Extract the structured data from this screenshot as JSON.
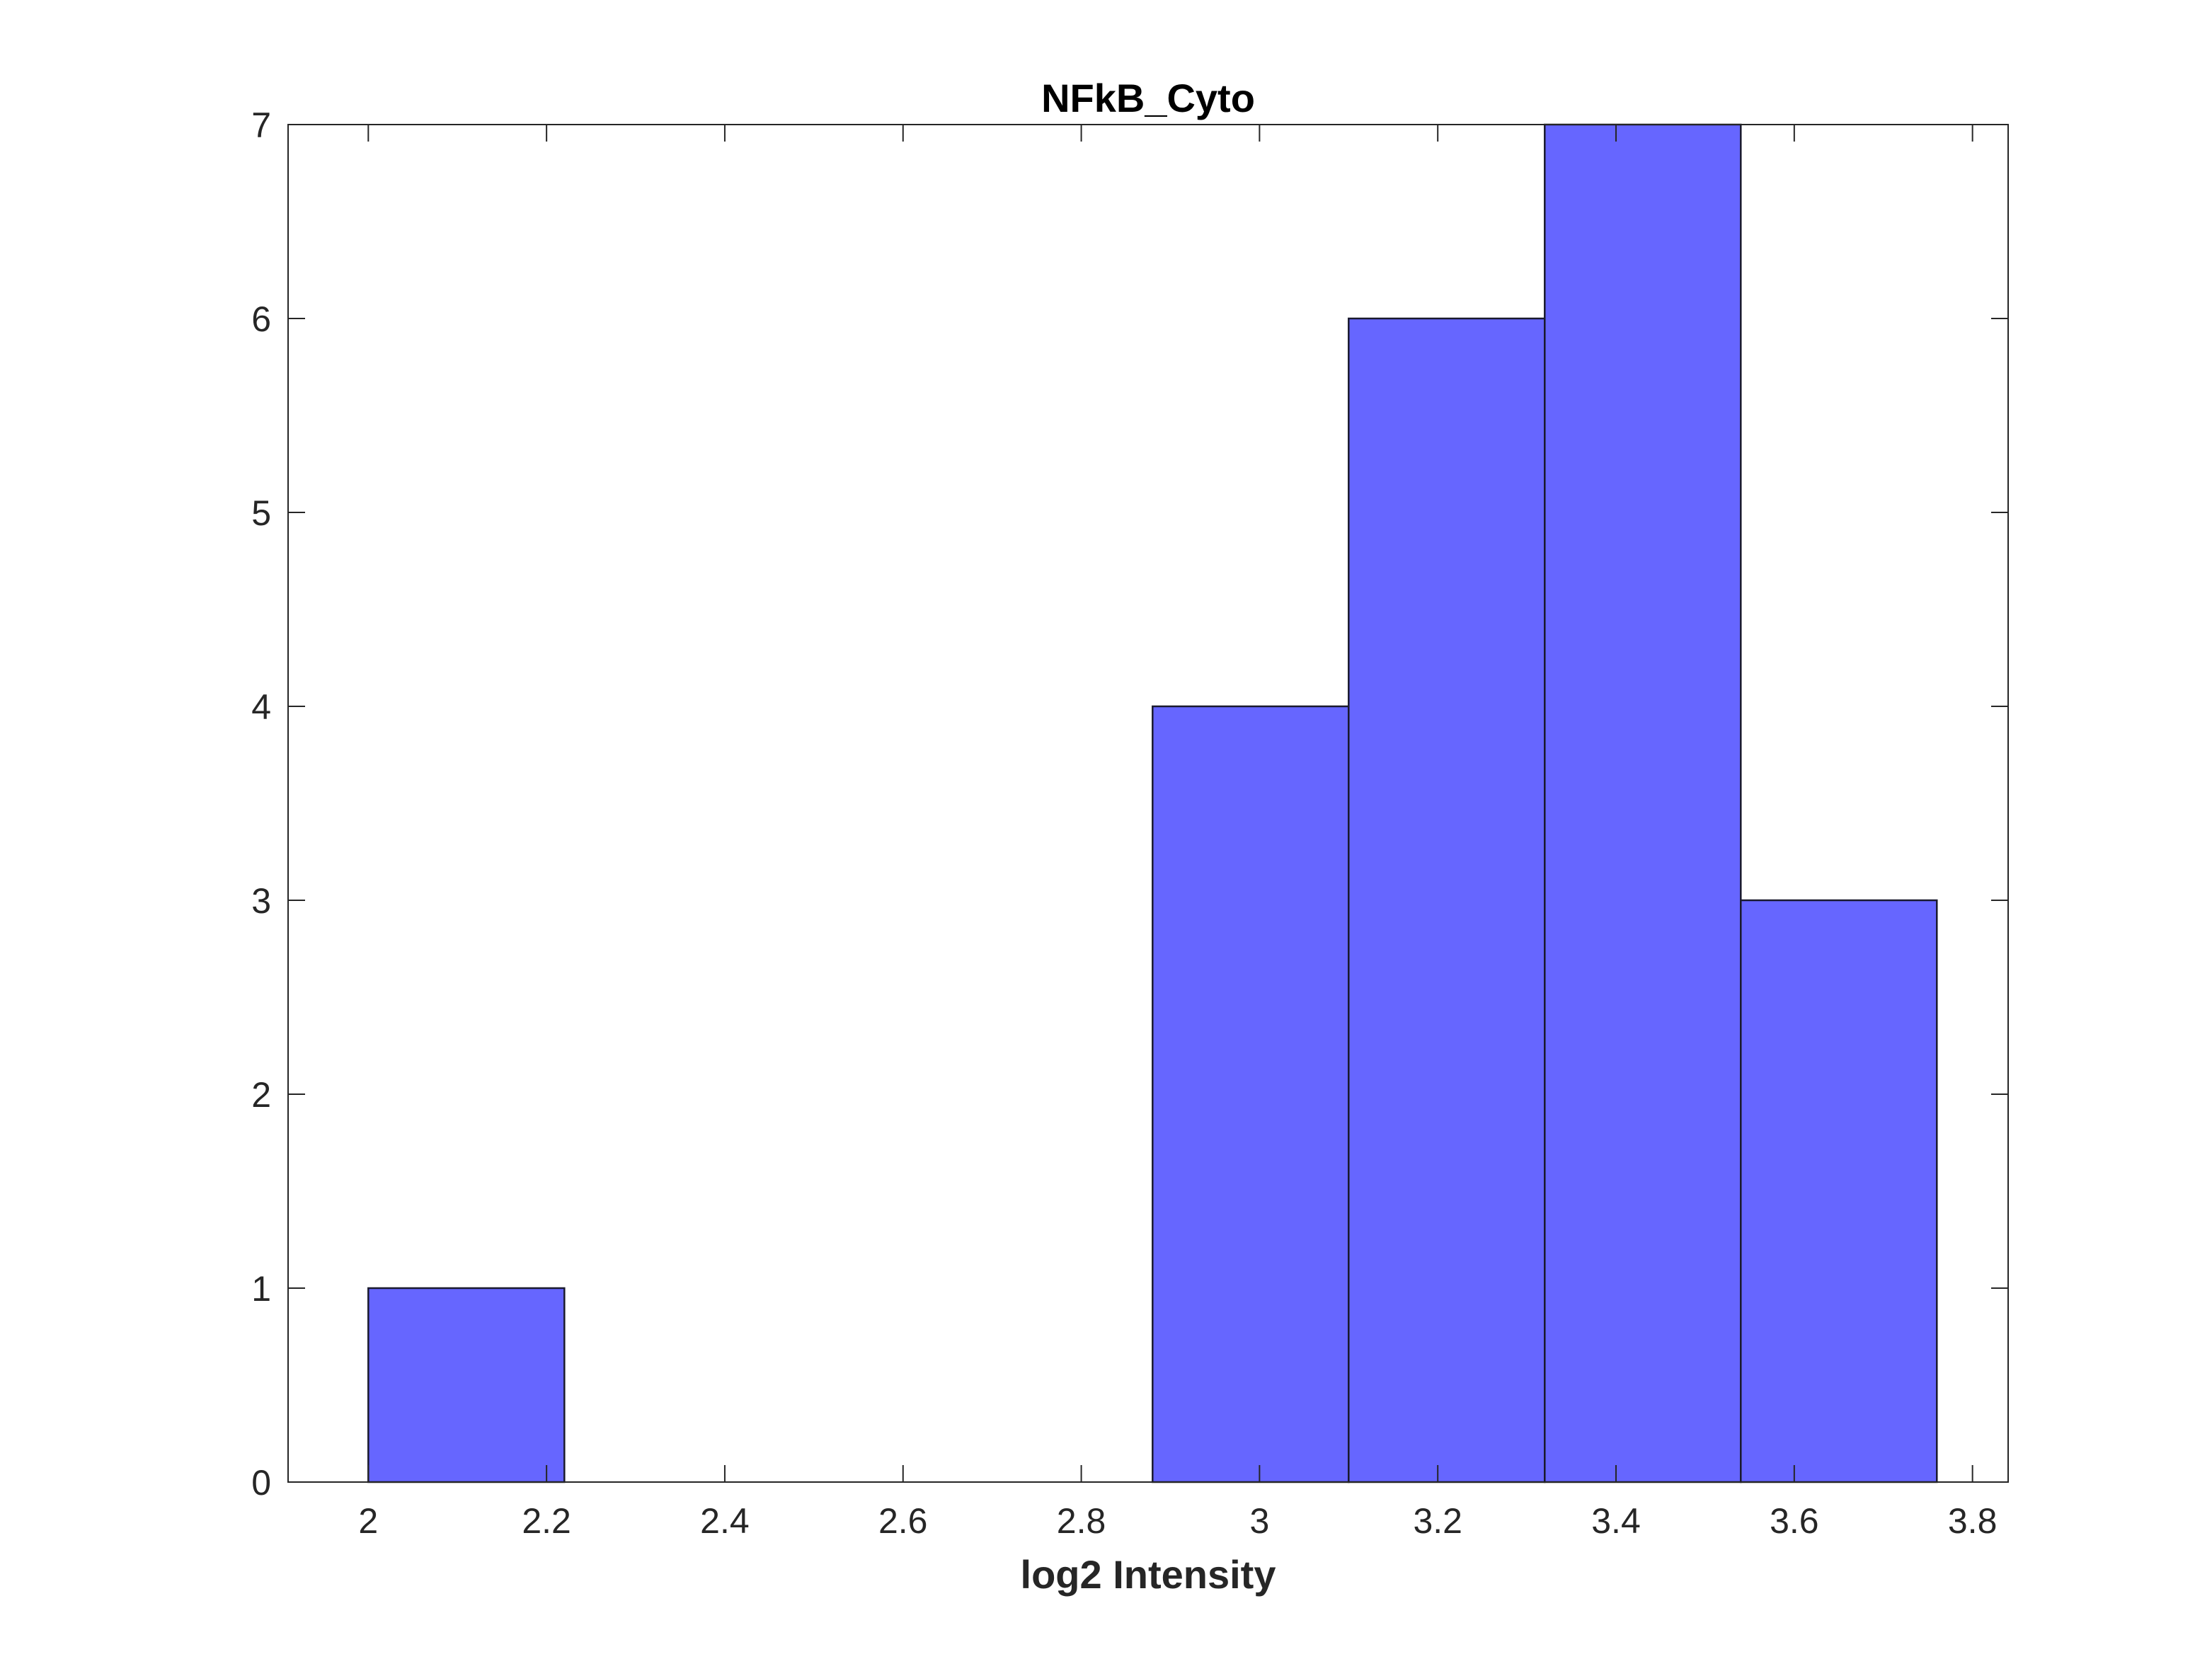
{
  "chart_data": {
    "type": "bar",
    "title": "NFkB_Cyto",
    "xlabel": "log2 Intensity",
    "ylabel": "",
    "xlim": [
      1.91,
      3.84
    ],
    "ylim": [
      0,
      7
    ],
    "xticks": [
      "2",
      "2.2",
      "2.4",
      "2.6",
      "2.8",
      "3",
      "3.2",
      "3.4",
      "3.6",
      "3.8"
    ],
    "yticks": [
      "0",
      "1",
      "2",
      "3",
      "4",
      "5",
      "6",
      "7"
    ],
    "bins": [
      {
        "x0": 2.0,
        "x1": 2.22,
        "count": 1
      },
      {
        "x0": 2.22,
        "x1": 2.44,
        "count": 0
      },
      {
        "x0": 2.44,
        "x1": 2.66,
        "count": 0
      },
      {
        "x0": 2.66,
        "x1": 2.88,
        "count": 0
      },
      {
        "x0": 2.88,
        "x1": 3.1,
        "count": 4
      },
      {
        "x0": 3.1,
        "x1": 3.32,
        "count": 6
      },
      {
        "x0": 3.32,
        "x1": 3.54,
        "count": 7
      },
      {
        "x0": 3.54,
        "x1": 3.76,
        "count": 3
      }
    ],
    "grid": false,
    "bar_color": "#6666ff",
    "edge_color": "#1a1a2e",
    "axis_color": "#262626"
  }
}
